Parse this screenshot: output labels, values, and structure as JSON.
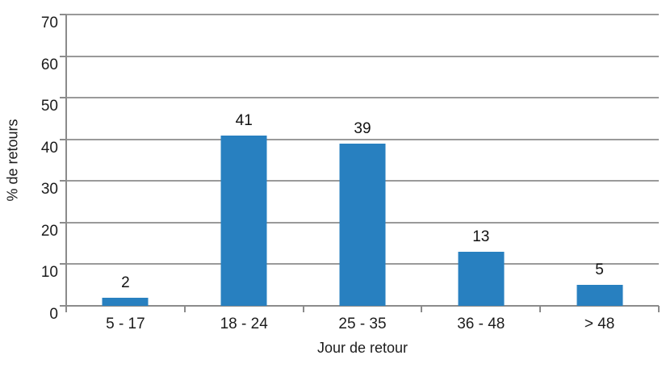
{
  "chart_data": {
    "type": "bar",
    "title": "",
    "categories": [
      "5 - 17",
      "18 - 24",
      "25 - 35",
      "36 - 48",
      "> 48"
    ],
    "values": [
      2,
      41,
      39,
      13,
      5
    ],
    "xlabel": "Jour de retour",
    "ylabel": "% de retours",
    "ylim": [
      0,
      70
    ],
    "yticks": [
      0,
      10,
      20,
      30,
      40,
      50,
      60,
      70
    ],
    "grid": true,
    "legend": "none",
    "data_labels": [
      "2",
      "41",
      "39",
      "13",
      "5"
    ],
    "colors": {
      "bar": "#2880c0",
      "gridline": "#9a9a9a",
      "axis": "#8b8b8b",
      "text": "#1c1c1c",
      "background": "#ffffff"
    }
  }
}
